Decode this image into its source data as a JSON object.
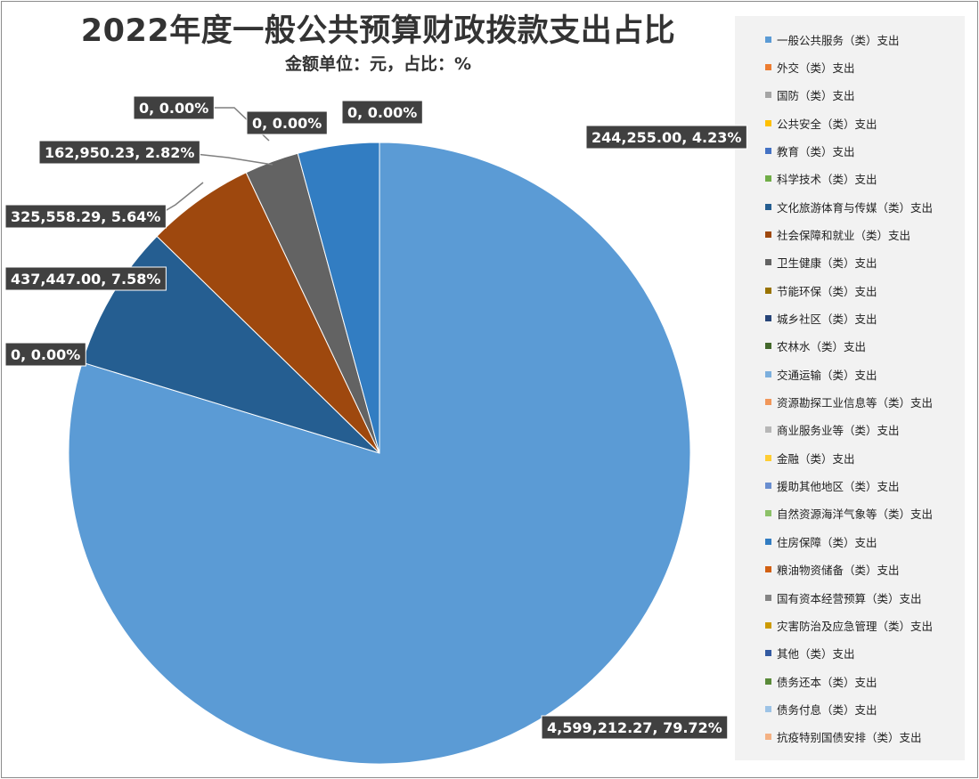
{
  "chart_data": {
    "type": "pie",
    "title": "2022年度一般公共预算财政拨款支出占比",
    "subtitle": "金额单位：元，占比：%",
    "legend_position": "right",
    "categories": [
      "一般公共服务（类）支出",
      "外交（类）支出",
      "国防（类）支出",
      "公共安全（类）支出",
      "教育（类）支出",
      "科学技术（类）支出",
      "文化旅游体育与传媒（类）支出",
      "社会保障和就业（类）支出",
      "卫生健康（类）支出",
      "节能环保（类）支出",
      "城乡社区（类）支出",
      "农林水（类）支出",
      "交通运输（类）支出",
      "资源勘探工业信息等（类）支出",
      "商业服务业等（类）支出",
      "金融（类）支出",
      "援助其他地区（类）支出",
      "自然资源海洋气象等（类）支出",
      "住房保障（类）支出",
      "粮油物资储备（类）支出",
      "国有资本经营预算（类）支出",
      "灾害防治及应急管理（类）支出",
      "其他（类）支出",
      "债务还本（类）支出",
      "债务付息（类）支出",
      "抗疫特别国债安排（类）支出"
    ],
    "colors": [
      "#5b9bd5",
      "#ed7d31",
      "#a5a5a5",
      "#ffc000",
      "#4472c4",
      "#70ad47",
      "#255e91",
      "#9e480e",
      "#636363",
      "#997300",
      "#264478",
      "#43682b",
      "#7cafdd",
      "#f1975a",
      "#b7b7b7",
      "#ffcd33",
      "#698ed0",
      "#8cc168",
      "#327dc2",
      "#d26012",
      "#848484",
      "#cc9a00",
      "#335aa1",
      "#5a8a39",
      "#9dc3e6",
      "#f4b183"
    ],
    "slices": [
      {
        "category_index": 0,
        "value": 4599212.27,
        "percent": 79.72,
        "label": "4,599,212.27, 79.72%"
      },
      {
        "category_index": 5,
        "value": 0,
        "percent": 0.0,
        "label": "0, 0.00%"
      },
      {
        "category_index": 6,
        "value": 437447.0,
        "percent": 7.58,
        "label": "437,447.00, 7.58%"
      },
      {
        "category_index": 7,
        "value": 325558.29,
        "percent": 5.64,
        "label": "325,558.29, 5.64%"
      },
      {
        "category_index": 8,
        "value": 162950.23,
        "percent": 2.82,
        "label": "162,950.23, 2.82%"
      },
      {
        "category_index": 9,
        "value": 0,
        "percent": 0.0,
        "label": "0, 0.00%"
      },
      {
        "category_index": 10,
        "value": 0,
        "percent": 0.0,
        "label": "0, 0.00%"
      },
      {
        "category_index": 11,
        "value": 0,
        "percent": 0.0,
        "label": "0, 0.00%"
      },
      {
        "category_index": 18,
        "value": 244255.0,
        "percent": 4.23,
        "label": "244,255.00, 4.23%"
      }
    ]
  }
}
